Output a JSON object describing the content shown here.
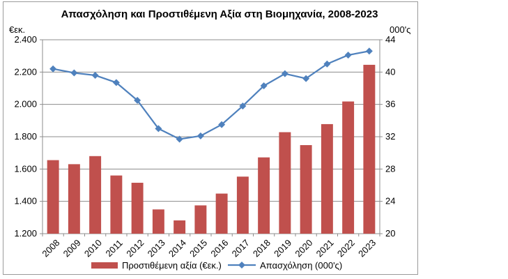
{
  "chart_data": {
    "type": "bar",
    "title": "Απασχόληση και Προστιθέμενη Αξία στη Βιομηχανία, 2008-2023",
    "y_left_unit": "€εκ.",
    "y_right_unit": "000'ς",
    "categories": [
      "2008",
      "2009",
      "2010",
      "2011",
      "2012",
      "2013",
      "2014",
      "2015",
      "2016",
      "2017",
      "2018",
      "2019",
      "2020",
      "2021",
      "2022",
      "2023"
    ],
    "y_left": {
      "min": 1200,
      "max": 2400,
      "ticks": [
        "1.200",
        "1.400",
        "1.600",
        "1.800",
        "2.000",
        "2.200",
        "2.400"
      ]
    },
    "y_right": {
      "min": 20,
      "max": 44,
      "ticks": [
        "20",
        "24",
        "28",
        "32",
        "36",
        "40",
        "44"
      ]
    },
    "grid": true,
    "legend_position": "bottom",
    "series": [
      {
        "name": "Προστιθέμενη αξία (€εκ.)",
        "kind": "bar",
        "axis": "left",
        "color": "#c0504d",
        "values": [
          1655,
          1630,
          1680,
          1560,
          1515,
          1350,
          1282,
          1375,
          1448,
          1553,
          1672,
          1828,
          1748,
          1878,
          2018,
          2245
        ]
      },
      {
        "name": "Απασχόληση (000'ς)",
        "kind": "line",
        "axis": "right",
        "color": "#4f81bd",
        "marker": "diamond",
        "values": [
          40.4,
          39.9,
          39.6,
          38.7,
          36.5,
          33.0,
          31.7,
          32.1,
          33.5,
          35.8,
          38.3,
          39.8,
          39.2,
          41.0,
          42.1,
          42.6
        ]
      }
    ]
  }
}
